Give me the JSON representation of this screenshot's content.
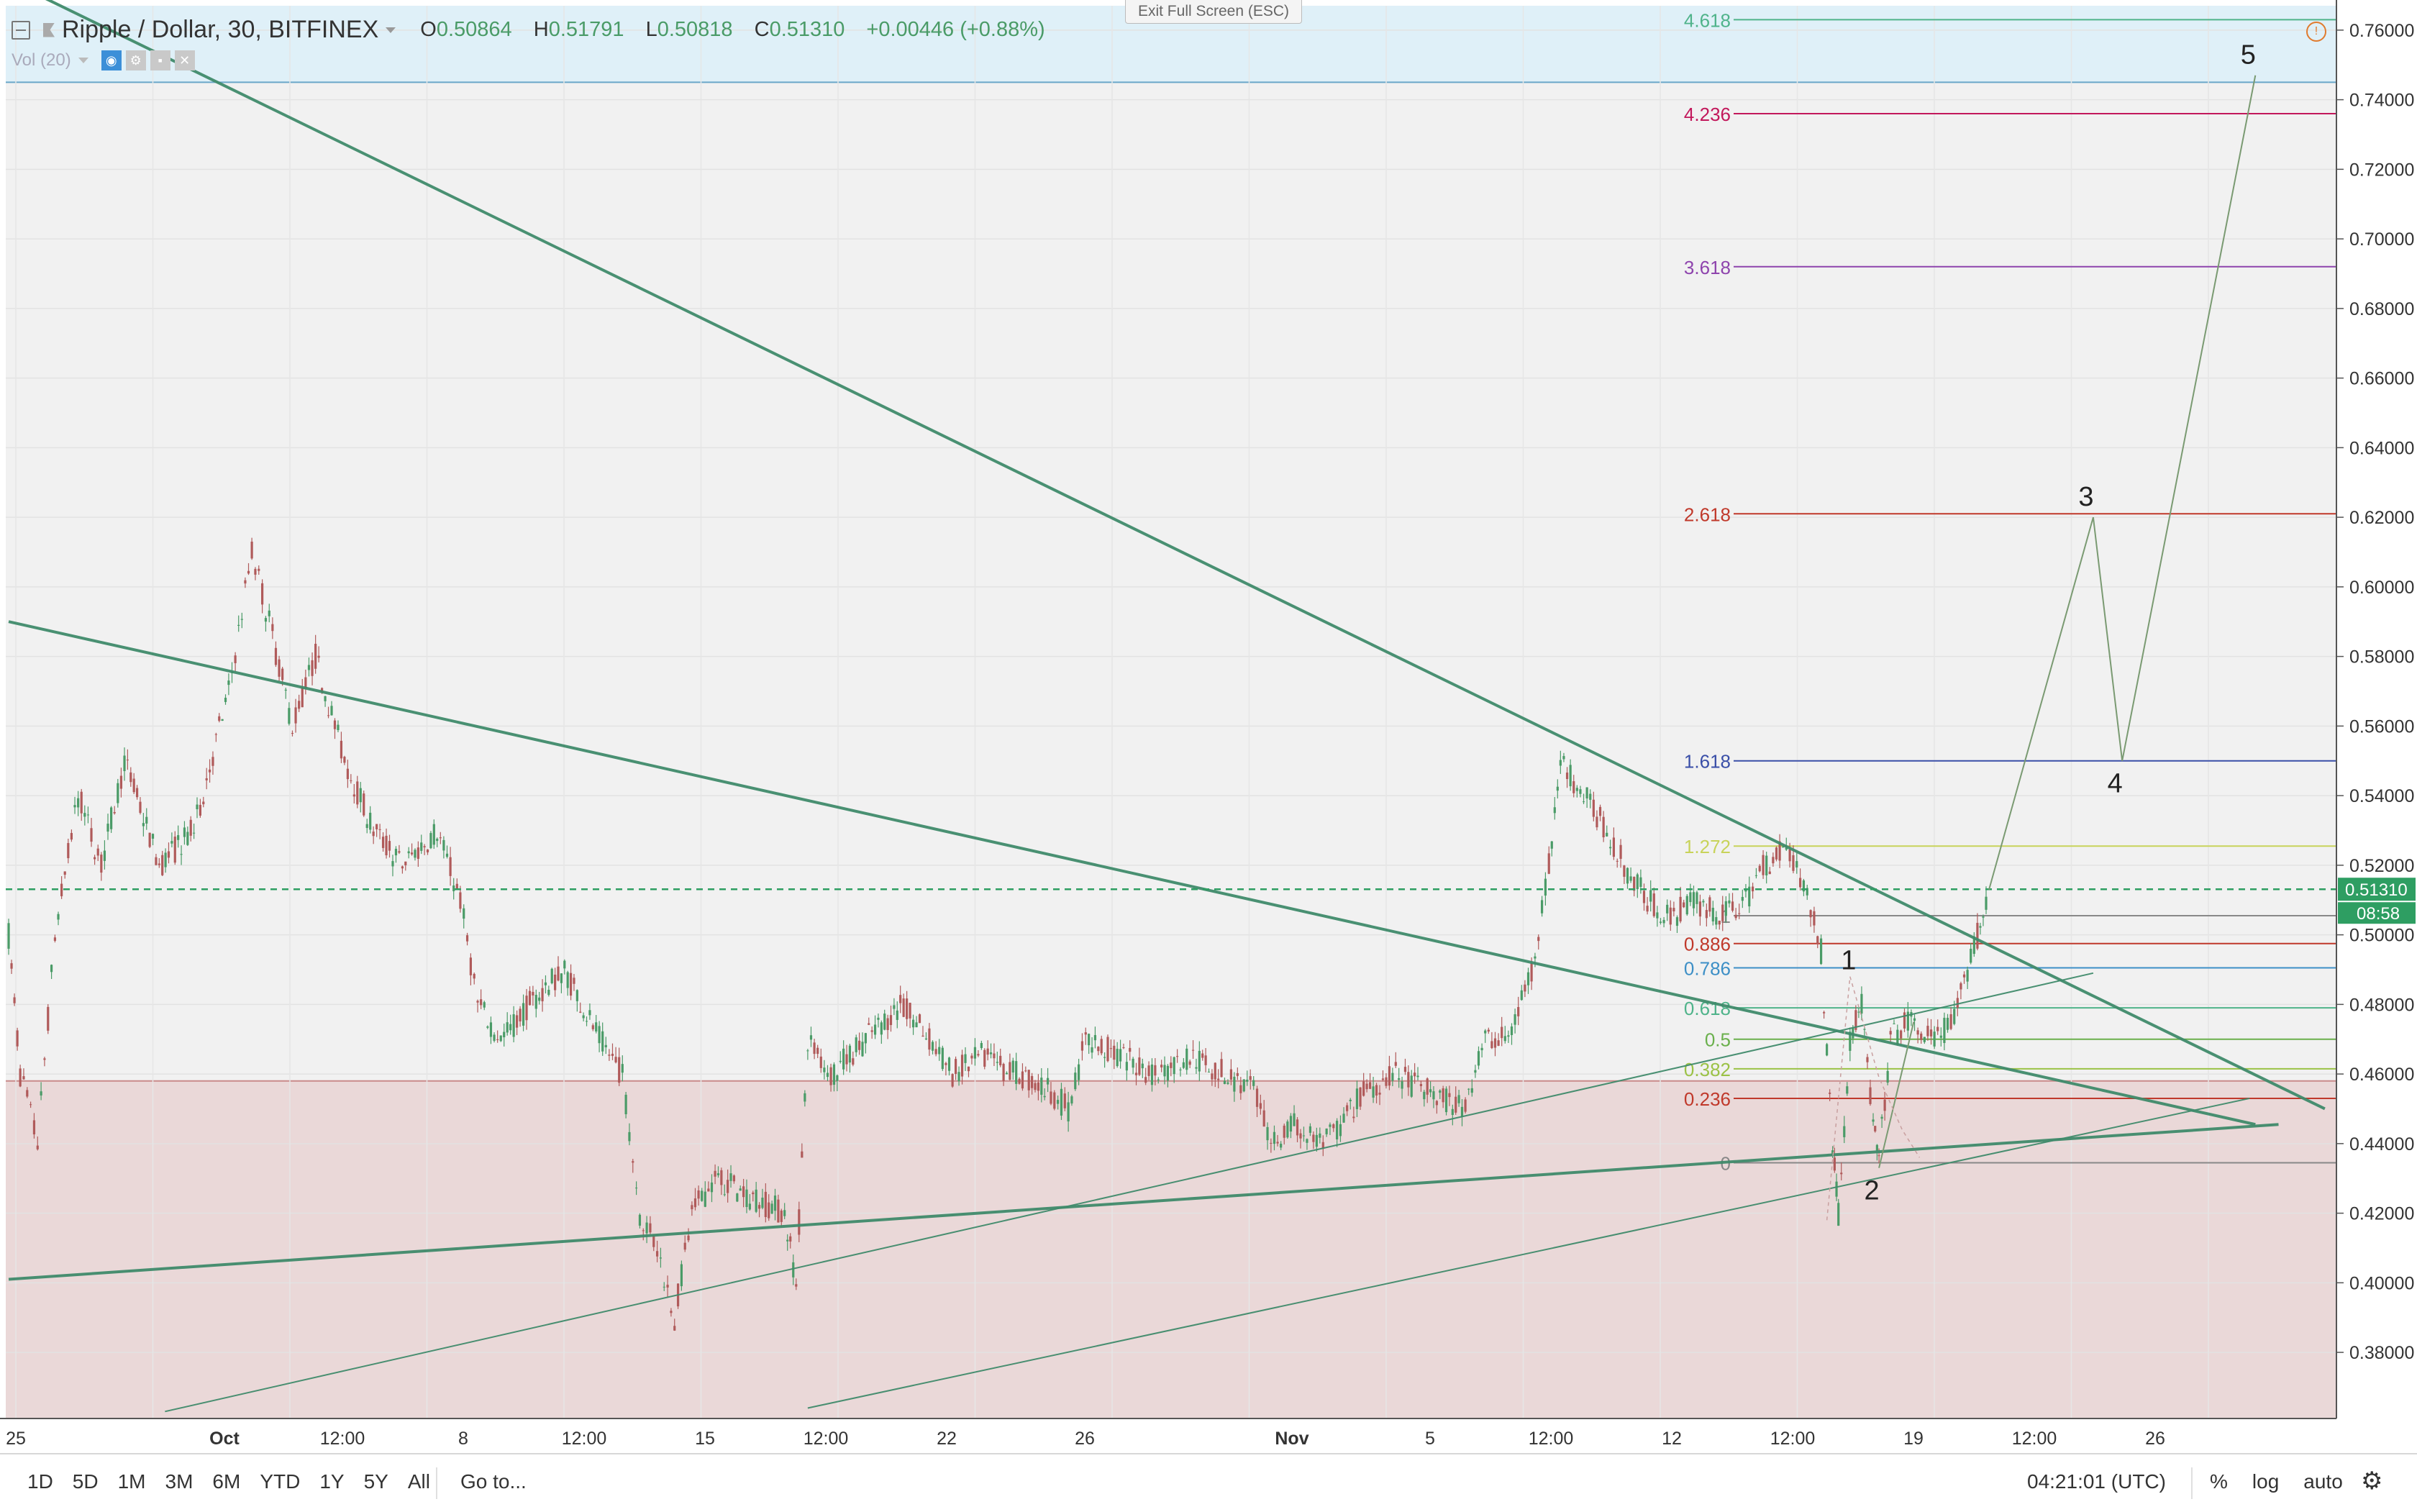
{
  "header": {
    "title": "Ripple / Dollar, 30, BITFINEX",
    "open_label": "O",
    "open": "0.50864",
    "high_label": "H",
    "high": "0.51791",
    "low_label": "L",
    "low": "0.50818",
    "close_label": "C",
    "close": "0.51310",
    "change": "+0.00446 (+0.88%)",
    "volume_indicator": "Vol (20)",
    "exit_fullscreen": "Exit Full Screen (ESC)"
  },
  "bottom_bar": {
    "ranges": [
      "1D",
      "5D",
      "1M",
      "3M",
      "6M",
      "YTD",
      "1Y",
      "5Y",
      "All"
    ],
    "goto": "Go to...",
    "clock": "04:21:01 (UTC)",
    "percent": "%",
    "log": "log",
    "auto": "auto"
  },
  "colors": {
    "up": "#4a9b67",
    "down": "#b05a5a",
    "trendline": "#3f8a6a",
    "price_line": "#2e9e62",
    "resistance_zone": "#dff0f8",
    "support_zone": "#ead8d8"
  },
  "chart_data": {
    "type": "candlestick",
    "symbol": "Ripple / Dollar",
    "interval": "30",
    "exchange": "BITFINEX",
    "y_ticks": [
      0.38,
      0.4,
      0.42,
      0.44,
      0.46,
      0.48,
      0.5,
      0.52,
      0.54,
      0.56,
      0.58,
      0.6,
      0.62,
      0.64,
      0.66,
      0.68,
      0.7,
      0.72,
      0.74,
      0.76
    ],
    "y_tick_labels": [
      "0.38000",
      "0.40000",
      "0.42000",
      "0.44000",
      "0.46000",
      "0.48000",
      "0.50000",
      "0.52000",
      "0.54000",
      "0.56000",
      "0.58000",
      "0.60000",
      "0.62000",
      "0.64000",
      "0.66000",
      "0.68000",
      "0.70000",
      "0.72000",
      "0.74000",
      "0.76000"
    ],
    "ylim": [
      0.361,
      0.767
    ],
    "x_labels": [
      "25",
      "Oct",
      "12:00",
      "8",
      "12:00",
      "15",
      "12:00",
      "22",
      "26",
      "Nov",
      "5",
      "12:00",
      "12",
      "12:00",
      "19",
      "12:00",
      "26"
    ],
    "last_price": "0.51310",
    "countdown": "08:58",
    "price_path": [
      [
        25.0,
        0.5
      ],
      [
        25.2,
        0.46
      ],
      [
        25.5,
        0.44
      ],
      [
        25.8,
        0.5
      ],
      [
        26.2,
        0.54
      ],
      [
        26.6,
        0.52
      ],
      [
        27.0,
        0.55
      ],
      [
        27.6,
        0.52
      ],
      [
        28.2,
        0.53
      ],
      [
        28.8,
        0.57
      ],
      [
        29.2,
        0.61
      ],
      [
        29.5,
        0.59
      ],
      [
        29.9,
        0.56
      ],
      [
        30.3,
        0.58
      ],
      [
        30.8,
        0.55
      ],
      [
        31.3,
        0.53
      ],
      [
        31.8,
        0.52
      ],
      [
        32.4,
        0.53
      ],
      [
        32.8,
        0.51
      ],
      [
        33.1,
        0.48
      ],
      [
        33.5,
        0.47
      ],
      [
        34.0,
        0.48
      ],
      [
        34.6,
        0.49
      ],
      [
        35.2,
        0.47
      ],
      [
        35.6,
        0.46
      ],
      [
        35.9,
        0.42
      ],
      [
        36.2,
        0.41
      ],
      [
        36.5,
        0.39
      ],
      [
        36.8,
        0.42
      ],
      [
        37.2,
        0.43
      ],
      [
        37.8,
        0.425
      ],
      [
        38.4,
        0.42
      ],
      [
        38.6,
        0.4
      ],
      [
        38.8,
        0.47
      ],
      [
        39.2,
        0.46
      ],
      [
        39.8,
        0.47
      ],
      [
        40.4,
        0.48
      ],
      [
        40.9,
        0.47
      ],
      [
        41.3,
        0.46
      ],
      [
        41.8,
        0.465
      ],
      [
        42.4,
        0.46
      ],
      [
        43.0,
        0.455
      ],
      [
        43.3,
        0.45
      ],
      [
        43.6,
        0.47
      ],
      [
        44.2,
        0.465
      ],
      [
        44.8,
        0.46
      ],
      [
        45.4,
        0.465
      ],
      [
        46.0,
        0.46
      ],
      [
        46.5,
        0.455
      ],
      [
        46.8,
        0.44
      ],
      [
        47.2,
        0.445
      ],
      [
        47.7,
        0.44
      ],
      [
        48.0,
        0.445
      ],
      [
        48.4,
        0.455
      ],
      [
        48.9,
        0.46
      ],
      [
        49.5,
        0.455
      ],
      [
        50.1,
        0.45
      ],
      [
        50.5,
        0.47
      ],
      [
        50.9,
        0.47
      ],
      [
        51.3,
        0.49
      ],
      [
        51.6,
        0.52
      ],
      [
        51.8,
        0.55
      ],
      [
        52.2,
        0.54
      ],
      [
        52.6,
        0.53
      ],
      [
        52.9,
        0.52
      ],
      [
        53.3,
        0.51
      ],
      [
        53.7,
        0.505
      ],
      [
        54.1,
        0.51
      ],
      [
        54.6,
        0.505
      ],
      [
        55.0,
        0.51
      ],
      [
        55.3,
        0.52
      ],
      [
        55.7,
        0.525
      ],
      [
        56.0,
        0.515
      ],
      [
        56.3,
        0.495
      ],
      [
        56.5,
        0.44
      ],
      [
        56.6,
        0.42
      ],
      [
        56.8,
        0.47
      ],
      [
        57.0,
        0.48
      ],
      [
        57.2,
        0.445
      ],
      [
        57.3,
        0.435
      ],
      [
        57.5,
        0.47
      ],
      [
        57.8,
        0.475
      ],
      [
        58.2,
        0.47
      ],
      [
        58.6,
        0.475
      ],
      [
        59.0,
        0.5
      ],
      [
        59.2,
        0.513
      ]
    ],
    "fib_levels": [
      {
        "level": "0",
        "price": 0.4345,
        "color": "#888888"
      },
      {
        "level": "0.236",
        "price": 0.453,
        "color": "#c0392b"
      },
      {
        "level": "0.382",
        "price": 0.4615,
        "color": "#9bc246"
      },
      {
        "level": "0.5",
        "price": 0.47,
        "color": "#6ab04c"
      },
      {
        "level": "0.618",
        "price": 0.479,
        "color": "#4fb38a"
      },
      {
        "level": "0.786",
        "price": 0.4905,
        "color": "#3d8fc6"
      },
      {
        "level": "0.886",
        "price": 0.4975,
        "color": "#c0392b"
      },
      {
        "level": "1",
        "price": 0.5055,
        "color": "#888888"
      },
      {
        "level": "1.272",
        "price": 0.5255,
        "color": "#c8d35a"
      },
      {
        "level": "1.618",
        "price": 0.55,
        "color": "#3a4fa8"
      },
      {
        "level": "2.618",
        "price": 0.621,
        "color": "#c0392b"
      },
      {
        "level": "3.618",
        "price": 0.692,
        "color": "#8e44ad"
      },
      {
        "level": "4.236",
        "price": 0.736,
        "color": "#c2185b"
      },
      {
        "level": "4.618",
        "price": 0.763,
        "color": "#4fb38a"
      }
    ],
    "elliott_wave_labels": [
      "1",
      "2",
      "3",
      "4",
      "5"
    ],
    "elliott_wave_points": [
      {
        "label": "1",
        "t": 56.9,
        "price": 0.488
      },
      {
        "label": "2",
        "t": 57.3,
        "price": 0.433
      },
      {
        "label": "3",
        "t": 61.0,
        "price": 0.62
      },
      {
        "label": "4",
        "t": 61.5,
        "price": 0.55
      },
      {
        "label": "5",
        "t": 63.8,
        "price": 0.747
      }
    ],
    "zones": [
      {
        "name": "resistance",
        "from": 0.745,
        "to": 0.767,
        "color": "#dff0f8"
      },
      {
        "name": "support",
        "from": 0.361,
        "to": 0.458,
        "color": "#ead8d8"
      }
    ],
    "trendlines": [
      {
        "from": [
          25.4,
          0.771
        ],
        "to": [
          65.0,
          0.45
        ],
        "width": 4
      },
      {
        "from": [
          25.0,
          0.59
        ],
        "to": [
          63.8,
          0.4455
        ],
        "width": 4
      },
      {
        "from": [
          25.0,
          0.401
        ],
        "to": [
          64.2,
          0.4455
        ],
        "width": 4
      },
      {
        "from": [
          27.7,
          0.363
        ],
        "to": [
          61.0,
          0.489
        ],
        "width": 2
      },
      {
        "from": [
          38.8,
          0.364
        ],
        "to": [
          63.7,
          0.453
        ],
        "width": 2
      }
    ]
  }
}
